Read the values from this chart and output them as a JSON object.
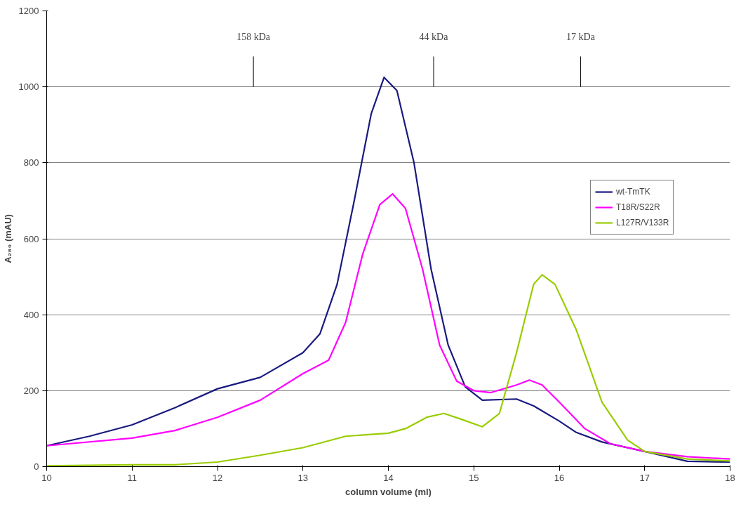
{
  "chart_data": {
    "type": "line",
    "xlabel": "column volume (ml)",
    "ylabel": "A₂₈₀ (mAU)",
    "xlim": [
      10,
      18
    ],
    "ylim": [
      0,
      1200
    ],
    "xticks": [
      10,
      11,
      12,
      13,
      14,
      15,
      16,
      17,
      18
    ],
    "yticks": [
      0,
      200,
      400,
      600,
      800,
      1000,
      1200
    ],
    "grid": "y",
    "legend": "right",
    "marker": "none",
    "line_style": "solid",
    "annotations": [
      {
        "text": "158 kDa",
        "x": 12.42,
        "y": 1080
      },
      {
        "text": "44 kDa",
        "x": 14.53,
        "y": 1080
      },
      {
        "text": "17 kDa",
        "x": 16.25,
        "y": 1080
      }
    ],
    "series": [
      {
        "name": "wt-TmTK",
        "color": "#1a1a80",
        "x": [
          10,
          10.5,
          11,
          11.5,
          12,
          12.5,
          13,
          13.2,
          13.4,
          13.6,
          13.8,
          13.95,
          14.1,
          14.3,
          14.5,
          14.7,
          14.9,
          15.1,
          15.5,
          15.7,
          16,
          16.2,
          16.5,
          17,
          17.5,
          18
        ],
        "values": [
          55,
          80,
          110,
          155,
          205,
          235,
          300,
          350,
          480,
          700,
          930,
          1025,
          990,
          800,
          520,
          320,
          210,
          175,
          178,
          160,
          120,
          90,
          65,
          40,
          14,
          12
        ]
      },
      {
        "name": "T18R/S22R",
        "color": "#ff00ff",
        "x": [
          10,
          11,
          11.5,
          12,
          12.5,
          13,
          13.3,
          13.5,
          13.7,
          13.9,
          14.05,
          14.2,
          14.4,
          14.6,
          14.8,
          15,
          15.2,
          15.5,
          15.65,
          15.8,
          16,
          16.3,
          16.6,
          17,
          17.5,
          18
        ],
        "values": [
          55,
          75,
          95,
          130,
          175,
          245,
          280,
          380,
          560,
          690,
          718,
          680,
          520,
          320,
          225,
          200,
          195,
          215,
          228,
          215,
          170,
          100,
          60,
          40,
          26,
          20
        ]
      },
      {
        "name": "L127R/V133R",
        "color": "#99cc00",
        "x": [
          10,
          11,
          11.5,
          12,
          12.5,
          13,
          13.5,
          14,
          14.2,
          14.45,
          14.65,
          14.85,
          15.1,
          15.3,
          15.5,
          15.7,
          15.8,
          15.95,
          16.2,
          16.5,
          16.8,
          17,
          17.5,
          18
        ],
        "values": [
          2,
          5,
          5,
          12,
          30,
          50,
          80,
          88,
          100,
          130,
          140,
          125,
          105,
          140,
          300,
          480,
          505,
          480,
          360,
          170,
          70,
          40,
          20,
          15
        ]
      },
      {
        "color": "#000000",
        "x": [
          12.42,
          12.42
        ],
        "values": [
          1000,
          1080
        ]
      },
      {
        "color": "#000000",
        "x": [
          14.53,
          14.53
        ],
        "values": [
          1000,
          1080
        ]
      },
      {
        "color": "#000000",
        "x": [
          16.25,
          16.25
        ],
        "values": [
          1000,
          1080
        ]
      }
    ]
  }
}
